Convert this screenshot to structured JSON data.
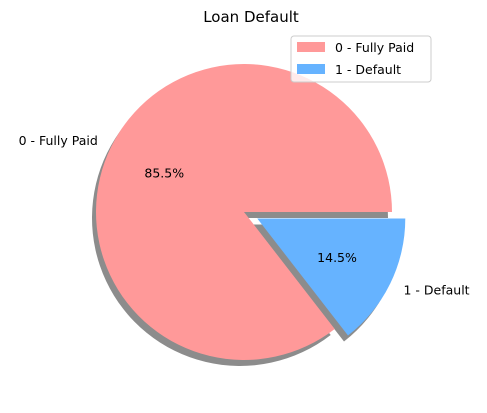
{
  "chart_data": {
    "type": "pie",
    "title": "Loan Default",
    "categories": [
      "0 - Fully Paid",
      "1 - Default"
    ],
    "values": [
      85.5,
      14.5
    ],
    "percent_labels": [
      "85.5%",
      "14.5%"
    ],
    "colors": [
      "#ff9999",
      "#66b3ff"
    ],
    "explode": [
      0,
      0.1
    ],
    "shadow": true,
    "legend": {
      "position": "top-right",
      "entries": [
        "0 - Fully Paid",
        "1 - Default"
      ]
    }
  }
}
